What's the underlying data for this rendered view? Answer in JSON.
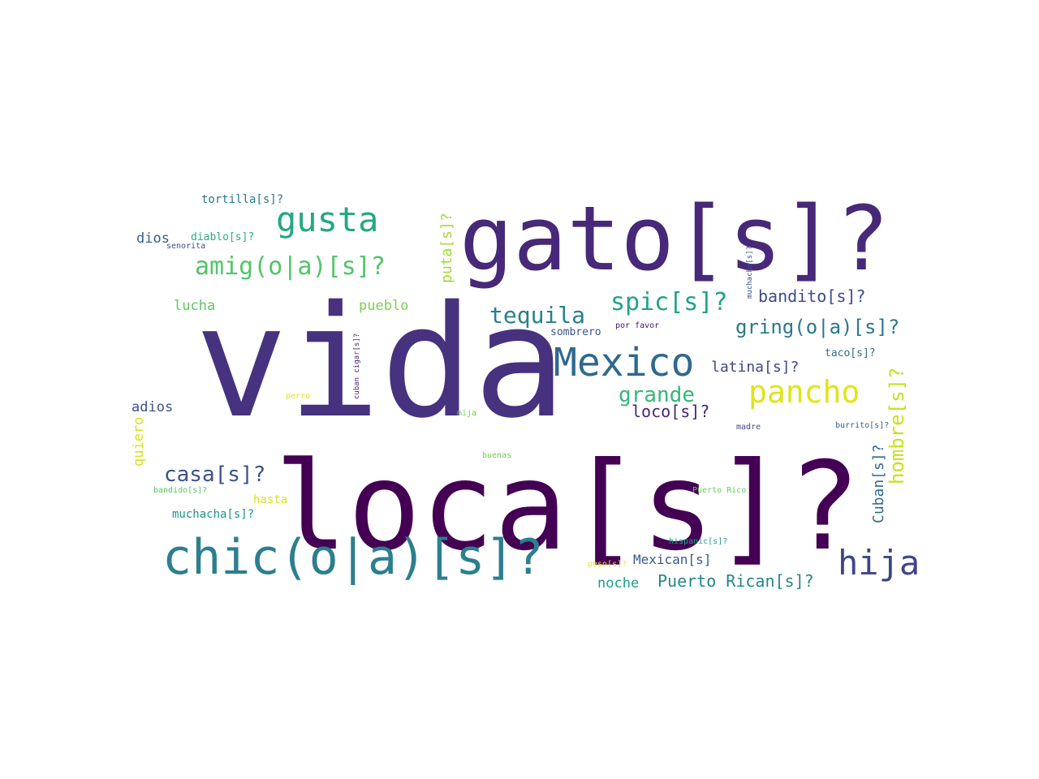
{
  "word_cloud": {
    "palette": "viridis",
    "background": "#ffffff",
    "words": [
      {
        "text": "vida",
        "color": "#46327e",
        "rotation": 0
      },
      {
        "text": "loca[s]?",
        "color": "#440154",
        "rotation": 0
      },
      {
        "text": "gato[s]?",
        "color": "#482878",
        "rotation": 0
      },
      {
        "text": "chic(o|a)[s]?",
        "color": "#2c7f8e",
        "rotation": 0
      },
      {
        "text": "Mexico",
        "color": "#30698e",
        "rotation": 0
      },
      {
        "text": "gusta",
        "color": "#22a884",
        "rotation": 0
      },
      {
        "text": "hija",
        "color": "#414487",
        "rotation": 0
      },
      {
        "text": "pancho",
        "color": "#e2e418",
        "rotation": 0
      },
      {
        "text": "amig(o|a)[s]?",
        "color": "#52c569",
        "rotation": 0
      },
      {
        "text": "spic[s]?",
        "color": "#20a386",
        "rotation": 0
      },
      {
        "text": "tequila",
        "color": "#277f8e",
        "rotation": 0
      },
      {
        "text": "grande",
        "color": "#35b779",
        "rotation": 0
      },
      {
        "text": "gring(o|a)[s]?",
        "color": "#2a788e",
        "rotation": 0
      },
      {
        "text": "casa[s]?",
        "color": "#3b528b",
        "rotation": 0
      },
      {
        "text": "hombre[s]?",
        "color": "#c8e020",
        "rotation": -90
      },
      {
        "text": "Puerto Rican[s]?",
        "color": "#25858e",
        "rotation": 0
      },
      {
        "text": "bandito[s]?",
        "color": "#3e4a89",
        "rotation": 0
      },
      {
        "text": "loco[s]?",
        "color": "#482475",
        "rotation": 0
      },
      {
        "text": "latina[s]?",
        "color": "#3f4788",
        "rotation": 0
      },
      {
        "text": "Cuban[s]?",
        "color": "#2f6c8e",
        "rotation": -90
      },
      {
        "text": "Mexican[s]",
        "color": "#38598c",
        "rotation": 0
      },
      {
        "text": "puta[s]?",
        "color": "#a2da37",
        "rotation": -90
      },
      {
        "text": "pueblo",
        "color": "#7ad151",
        "rotation": 0
      },
      {
        "text": "lucha",
        "color": "#5ec962",
        "rotation": 0
      },
      {
        "text": "noche",
        "color": "#1f9e89",
        "rotation": 0
      },
      {
        "text": "dios",
        "color": "#355f8d",
        "rotation": 0
      },
      {
        "text": "adios",
        "color": "#3b528b",
        "rotation": 0
      },
      {
        "text": "quiero",
        "color": "#d8e219",
        "rotation": -90
      },
      {
        "text": "muchacha[s]?",
        "color": "#21918c",
        "rotation": 0
      },
      {
        "text": "hasta",
        "color": "#dde318",
        "rotation": 0
      },
      {
        "text": "tortilla[s]?",
        "color": "#2a788e",
        "rotation": 0
      },
      {
        "text": "diablo[s]?",
        "color": "#29af7f",
        "rotation": 0
      },
      {
        "text": "senorita",
        "color": "#3e4c8a",
        "rotation": 0
      },
      {
        "text": "taco[s]?",
        "color": "#2e6f8e",
        "rotation": 0
      },
      {
        "text": "sombrero",
        "color": "#3a548c",
        "rotation": 0
      },
      {
        "text": "por favor",
        "color": "#471365",
        "rotation": 0
      },
      {
        "text": "muchacho[s]?",
        "color": "#3c4f8a",
        "rotation": -90
      },
      {
        "text": "cuban cigar[s]?",
        "color": "#481f70",
        "rotation": -90
      },
      {
        "text": "perro",
        "color": "#e5e419",
        "rotation": 0
      },
      {
        "text": "mija",
        "color": "#6ece58",
        "rotation": 0
      },
      {
        "text": "madre",
        "color": "#3f4889",
        "rotation": 0
      },
      {
        "text": "burrito[s]?",
        "color": "#365c8d",
        "rotation": 0
      },
      {
        "text": "buenas",
        "color": "#75d054",
        "rotation": 0
      },
      {
        "text": "bandido[s]?",
        "color": "#58c765",
        "rotation": 0
      },
      {
        "text": "Puerto Rico",
        "color": "#63cb5f",
        "rotation": 0
      },
      {
        "text": "hispanic[s]?",
        "color": "#1fa187",
        "rotation": 0
      },
      {
        "text": "peso[s]?",
        "color": "#ece51b",
        "rotation": 0
      }
    ]
  }
}
